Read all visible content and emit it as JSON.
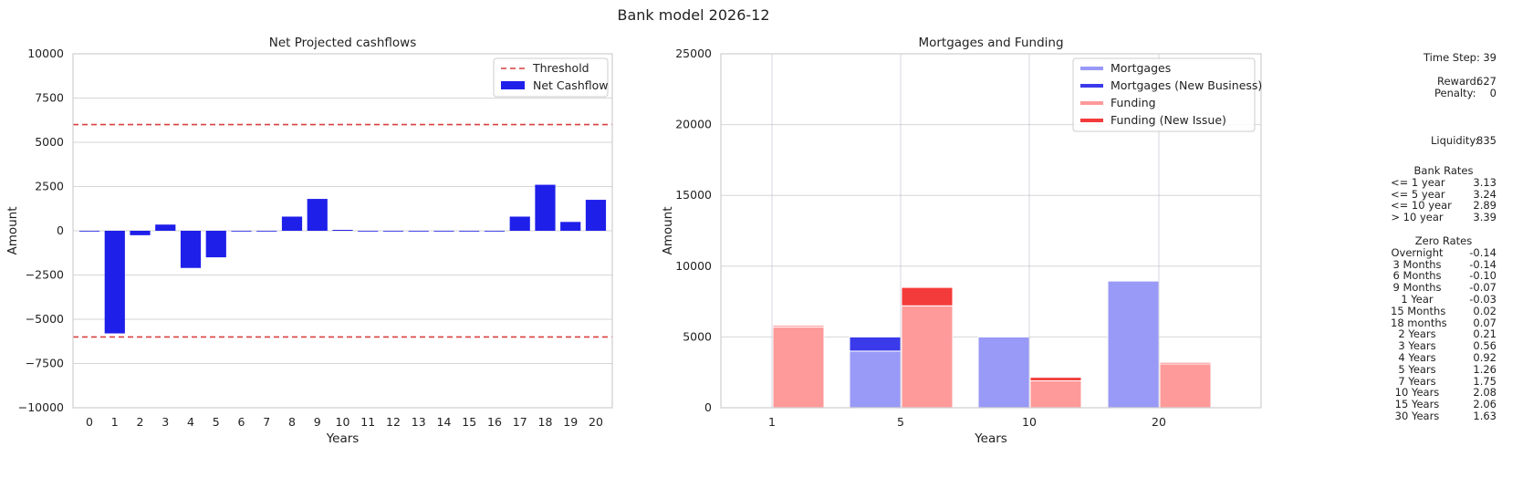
{
  "suptitle": "Bank model 2026-12",
  "charts": [
    {
      "title": "Net Projected cashflows",
      "xlabel": "Years",
      "ylabel": "Amount",
      "ylim": [
        -10000,
        10000
      ],
      "yticks": [
        "−10000",
        "−7500",
        "−5000",
        "−2500",
        "0",
        "2500",
        "5000",
        "7500",
        "10000"
      ],
      "legend": [
        "Threshold",
        "Net Cashflow"
      ]
    },
    {
      "title": "Mortgages and Funding",
      "xlabel": "Years",
      "ylabel": "Amount",
      "ylim": [
        0,
        25000
      ],
      "yticks": [
        "0",
        "5000",
        "10000",
        "15000",
        "20000",
        "25000"
      ],
      "legend": [
        "Mortgages",
        "Mortgages (New Business)",
        "Funding",
        "Funding (New Issue)"
      ]
    }
  ],
  "chart_data": [
    {
      "type": "bar",
      "title": "Net Projected cashflows",
      "xlabel": "Years",
      "ylabel": "Amount",
      "categories": [
        "0",
        "1",
        "2",
        "3",
        "4",
        "5",
        "6",
        "7",
        "8",
        "9",
        "10",
        "11",
        "12",
        "13",
        "14",
        "15",
        "16",
        "17",
        "18",
        "19",
        "20"
      ],
      "series": [
        {
          "name": "Net Cashflow",
          "values": [
            0,
            -5800,
            -250,
            350,
            -2100,
            -1500,
            0,
            0,
            800,
            1800,
            50,
            0,
            0,
            0,
            0,
            0,
            0,
            800,
            2600,
            500,
            1750
          ]
        }
      ],
      "thresholds": [
        6000,
        -6000
      ],
      "threshold_name": "Threshold",
      "ylim": [
        -10000,
        10000
      ],
      "grid": true,
      "legend_position": "top-right",
      "colors": {
        "bar": "#1f1fea",
        "threshold": "#d94040"
      }
    },
    {
      "type": "bar",
      "title": "Mortgages and Funding",
      "xlabel": "Years",
      "ylabel": "Amount",
      "categories": [
        "1",
        "5",
        "10",
        "20"
      ],
      "series": [
        {
          "name": "Mortgages",
          "values": [
            0,
            4000,
            5000,
            8950
          ]
        },
        {
          "name": "Mortgages (New Business)",
          "values": [
            0,
            1000,
            0,
            0
          ]
        },
        {
          "name": "Funding",
          "values": [
            5700,
            7200,
            1900,
            3100
          ]
        },
        {
          "name": "Funding (New Issue)",
          "values": [
            100,
            1300,
            250,
            100
          ]
        }
      ],
      "ylim": [
        0,
        25000
      ],
      "grid": true,
      "legend_position": "top-right",
      "colors": {
        "mortgages": "#9999f7",
        "mortgages_new": "#3a3aeb",
        "funding": "#ff9a9a",
        "funding_new": "#f43b3b"
      }
    }
  ],
  "side_panel": {
    "time_step": {
      "label": "Time Step:",
      "value": "39"
    },
    "reward": {
      "label": "Reward:",
      "value": "627"
    },
    "penalty": {
      "label": "Penalty:",
      "value": "0"
    },
    "liquidity": {
      "label": "Liquidity:",
      "value": "835"
    },
    "bank_rates": {
      "title": "Bank Rates",
      "rows": [
        {
          "label": "<= 1 year",
          "value": "3.13"
        },
        {
          "label": "<= 5 year",
          "value": "3.24"
        },
        {
          "label": "<= 10 year",
          "value": "2.89"
        },
        {
          "label": "> 10 year",
          "value": "3.39"
        }
      ]
    },
    "zero_rates": {
      "title": "Zero Rates",
      "rows": [
        {
          "label": "Overnight",
          "value": "-0.14"
        },
        {
          "label": "3 Months",
          "value": "-0.14"
        },
        {
          "label": "6 Months",
          "value": "-0.10"
        },
        {
          "label": "9 Months",
          "value": "-0.07"
        },
        {
          "label": "1 Year",
          "value": "-0.03"
        },
        {
          "label": "15 Months",
          "value": "0.02"
        },
        {
          "label": "18 months",
          "value": "0.07"
        },
        {
          "label": "2 Years",
          "value": "0.21"
        },
        {
          "label": "3 Years",
          "value": "0.56"
        },
        {
          "label": "4 Years",
          "value": "0.92"
        },
        {
          "label": "5 Years",
          "value": "1.26"
        },
        {
          "label": "7 Years",
          "value": "1.75"
        },
        {
          "label": "10 Years",
          "value": "2.08"
        },
        {
          "label": "15 Years",
          "value": "2.06"
        },
        {
          "label": "30 Years",
          "value": "1.63"
        }
      ]
    }
  }
}
